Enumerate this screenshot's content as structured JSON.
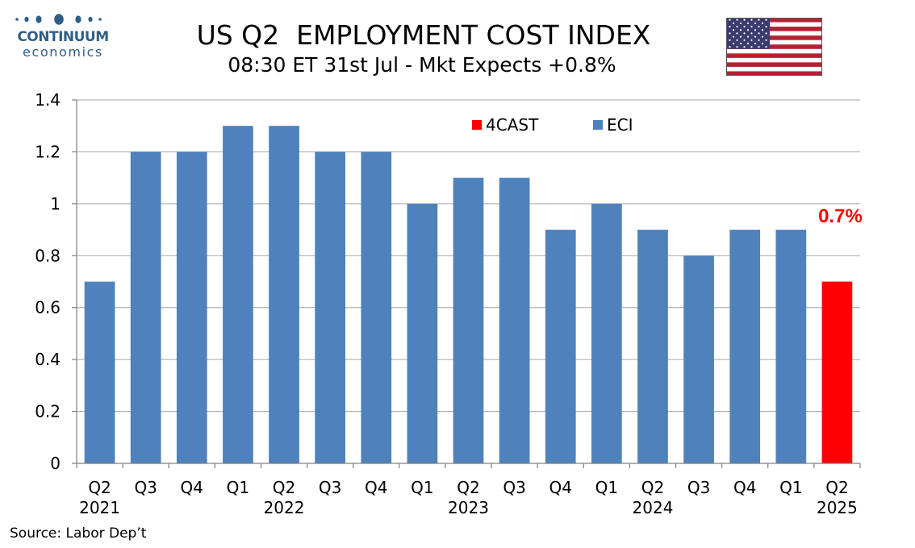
{
  "logo": {
    "brand": "CONTINUUM",
    "sub": "economics"
  },
  "header": {
    "title": "US Q2  EMPLOYMENT COST INDEX",
    "subtitle": "08:30 ET 31st Jul - Mkt Expects +0.8%"
  },
  "flag_icon": "us-flag-icon",
  "footer": {
    "source": "Source: Labor Dep’t"
  },
  "colors": {
    "eci": "#4f81bd",
    "forecast": "#ff0000",
    "logo": "#2f5f86",
    "gridline": "#a6a6a6"
  },
  "chart_data": {
    "type": "bar",
    "categories": [
      "Q2",
      "Q3",
      "Q4",
      "Q1",
      "Q2",
      "Q3",
      "Q4",
      "Q1",
      "Q2",
      "Q3",
      "Q4",
      "Q1",
      "Q2",
      "Q3",
      "Q4",
      "Q1",
      "Q2"
    ],
    "year_labels": [
      "2021",
      "",
      "",
      "",
      "2022",
      "",
      "",
      "",
      "2023",
      "",
      "",
      "",
      "2024",
      "",
      "",
      "",
      "2025"
    ],
    "series": [
      {
        "name": "ECI",
        "color": "#4f81bd",
        "values": [
          0.7,
          1.2,
          1.2,
          1.3,
          1.3,
          1.2,
          1.2,
          1.0,
          1.1,
          1.1,
          0.9,
          1.0,
          0.9,
          0.8,
          0.9,
          0.9,
          null
        ]
      },
      {
        "name": "4CAST",
        "color": "#ff0000",
        "values": [
          null,
          null,
          null,
          null,
          null,
          null,
          null,
          null,
          null,
          null,
          null,
          null,
          null,
          null,
          null,
          null,
          0.7
        ]
      }
    ],
    "legend_order": [
      "4CAST",
      "ECI"
    ],
    "annotations": [
      {
        "text": "0.7%",
        "category_index": 16,
        "color": "#ff0000"
      }
    ],
    "yticks": [
      "0",
      "0.2",
      "0.4",
      "0.6",
      "0.8",
      "1",
      "1.2",
      "1.4"
    ],
    "ylim": [
      0,
      1.4
    ],
    "grid": true,
    "legend_position": "top-center"
  }
}
